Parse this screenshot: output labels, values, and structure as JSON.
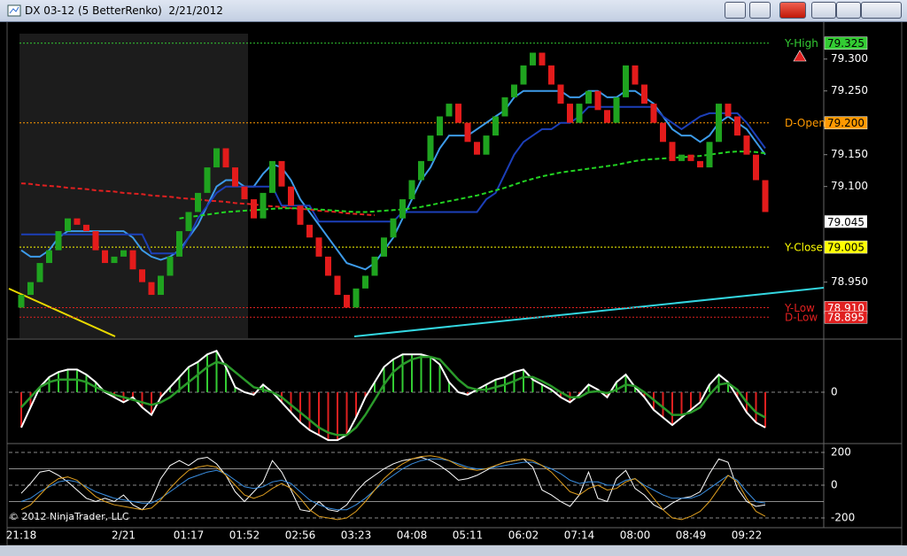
{
  "window": {
    "title": "DX 03-12 (5 BetterRenko)  2/21/2012",
    "copyright": "© 2012 NinjaTrader, LLC"
  },
  "chart_data": [
    {
      "type": "candlestick",
      "open": [
        78.91,
        78.93,
        78.95,
        78.98,
        79.0,
        79.03,
        79.05,
        79.04,
        79.03,
        79.0,
        78.98,
        78.99,
        79.0,
        78.97,
        78.95,
        78.93,
        78.96,
        78.99,
        79.03,
        79.06,
        79.09,
        79.13,
        79.16,
        79.13,
        79.1,
        79.08,
        79.05,
        79.09,
        79.14,
        79.1,
        79.07,
        79.04,
        79.02,
        78.99,
        78.96,
        78.93,
        78.91,
        78.94,
        78.96,
        78.99,
        79.02,
        79.05,
        79.08,
        79.11,
        79.14,
        79.18,
        79.21,
        79.23,
        79.2,
        79.17,
        79.15,
        79.18,
        79.21,
        79.24,
        79.26,
        79.29,
        79.31,
        79.29,
        79.26,
        79.23,
        79.2,
        79.23,
        79.25,
        79.22,
        79.2,
        79.24,
        79.29,
        79.26,
        79.23,
        79.2,
        79.17,
        79.14,
        79.15,
        79.14,
        79.13,
        79.17,
        79.23,
        79.21,
        79.18,
        79.15,
        79.11
      ],
      "close": [
        78.93,
        78.95,
        78.98,
        79.0,
        79.03,
        79.05,
        79.04,
        79.03,
        79.0,
        78.98,
        78.99,
        79.0,
        78.97,
        78.95,
        78.93,
        78.96,
        78.99,
        79.03,
        79.06,
        79.09,
        79.13,
        79.16,
        79.13,
        79.1,
        79.08,
        79.05,
        79.09,
        79.14,
        79.1,
        79.07,
        79.04,
        79.02,
        78.99,
        78.96,
        78.93,
        78.91,
        78.94,
        78.96,
        78.99,
        79.02,
        79.05,
        79.08,
        79.11,
        79.14,
        79.18,
        79.21,
        79.23,
        79.2,
        79.17,
        79.15,
        79.18,
        79.21,
        79.24,
        79.26,
        79.29,
        79.31,
        79.29,
        79.26,
        79.23,
        79.2,
        79.23,
        79.25,
        79.22,
        79.2,
        79.24,
        79.29,
        79.26,
        79.23,
        79.2,
        79.17,
        79.14,
        79.15,
        79.14,
        79.13,
        79.17,
        79.23,
        79.21,
        79.18,
        79.15,
        79.11,
        79.06
      ],
      "up_color": "#1fa31f",
      "down_color": "#e31b1b",
      "ylim": [
        78.862,
        79.351
      ],
      "yticks": [
        {
          "value": 79.3,
          "label": "79.300"
        },
        {
          "value": 79.25,
          "label": "79.250"
        },
        {
          "value": 79.15,
          "label": "79.150"
        },
        {
          "value": 79.1,
          "label": "79.100"
        },
        {
          "value": 78.95,
          "label": "78.950"
        }
      ],
      "lines": [
        {
          "color": "#3d9be9",
          "dashed": false,
          "values": [
            79.0,
            78.99,
            78.99,
            79.0,
            79.02,
            79.03,
            79.03,
            79.03,
            79.03,
            79.03,
            79.03,
            79.03,
            79.02,
            79.0,
            78.99,
            78.985,
            78.99,
            79.0,
            79.02,
            79.04,
            79.07,
            79.1,
            79.11,
            79.11,
            79.1,
            79.1,
            79.12,
            79.135,
            79.13,
            79.11,
            79.08,
            79.06,
            79.04,
            79.02,
            79.0,
            78.98,
            78.975,
            78.97,
            78.98,
            79.0,
            79.02,
            79.05,
            79.08,
            79.11,
            79.13,
            79.16,
            79.18,
            79.18,
            79.18,
            79.19,
            79.2,
            79.21,
            79.22,
            79.24,
            79.25,
            79.25,
            79.25,
            79.25,
            79.25,
            79.24,
            79.24,
            79.25,
            79.25,
            79.24,
            79.24,
            79.25,
            79.25,
            79.24,
            79.23,
            79.21,
            79.19,
            79.18,
            79.18,
            79.17,
            79.18,
            79.2,
            79.21,
            79.2,
            79.19,
            79.17,
            79.15
          ]
        },
        {
          "color": "#1c3fb8",
          "dashed": false,
          "values": [
            79.025,
            79.025,
            79.025,
            79.025,
            79.025,
            79.025,
            79.025,
            79.025,
            79.025,
            79.025,
            79.025,
            79.025,
            79.025,
            79.025,
            78.995,
            78.995,
            78.995,
            78.995,
            79.02,
            79.05,
            79.07,
            79.09,
            79.1,
            79.1,
            79.1,
            79.1,
            79.1,
            79.1,
            79.07,
            79.07,
            79.07,
            79.07,
            79.045,
            79.045,
            79.045,
            79.045,
            79.045,
            79.045,
            79.045,
            79.045,
            79.045,
            79.06,
            79.06,
            79.06,
            79.06,
            79.06,
            79.06,
            79.06,
            79.06,
            79.06,
            79.08,
            79.09,
            79.12,
            79.15,
            79.17,
            79.18,
            79.19,
            79.19,
            79.2,
            79.2,
            79.21,
            79.225,
            79.225,
            79.225,
            79.225,
            79.225,
            79.225,
            79.225,
            79.225,
            79.21,
            79.2,
            79.19,
            79.2,
            79.21,
            79.215,
            79.215,
            79.215,
            79.215,
            79.2,
            79.18,
            79.16
          ]
        },
        {
          "color": "#e02020",
          "dashed": true,
          "values": [
            79.105,
            79.104,
            79.102,
            79.101,
            79.1,
            79.098,
            79.097,
            79.096,
            79.094,
            79.093,
            79.092,
            79.09,
            79.089,
            79.088,
            79.086,
            79.085,
            79.084,
            79.082,
            79.081,
            79.08,
            79.078,
            79.077,
            79.076,
            79.074,
            79.073,
            79.072,
            79.07,
            79.069,
            79.068,
            79.066,
            79.065,
            79.064,
            79.062,
            79.061,
            79.06,
            79.058,
            79.057,
            79.056,
            79.055,
            null,
            null,
            null,
            null,
            null,
            null,
            null,
            null,
            null,
            null,
            null,
            null,
            null,
            null,
            null,
            null,
            null,
            null,
            null,
            null,
            null,
            null,
            null,
            null,
            null,
            null,
            null,
            null,
            null,
            null,
            null,
            null,
            null,
            null,
            null,
            null,
            null,
            null,
            null,
            null,
            null,
            null
          ]
        },
        {
          "color": "#22d322",
          "dashed": true,
          "values": [
            null,
            null,
            null,
            null,
            null,
            null,
            null,
            null,
            null,
            null,
            null,
            null,
            null,
            null,
            null,
            null,
            null,
            79.05,
            79.052,
            79.054,
            79.056,
            79.058,
            79.06,
            79.061,
            79.062,
            79.063,
            79.064,
            79.065,
            79.066,
            79.066,
            79.066,
            79.065,
            79.064,
            79.063,
            79.062,
            79.061,
            79.06,
            79.06,
            79.061,
            79.062,
            79.063,
            79.064,
            79.066,
            79.068,
            79.071,
            79.074,
            79.077,
            79.08,
            79.083,
            79.086,
            79.09,
            79.094,
            79.098,
            79.103,
            79.108,
            79.112,
            79.116,
            79.119,
            79.122,
            79.124,
            79.126,
            79.128,
            79.13,
            79.132,
            79.134,
            79.137,
            79.14,
            79.142,
            79.143,
            79.144,
            79.145,
            79.146,
            79.147,
            79.148,
            79.15,
            79.152,
            79.154,
            79.155,
            79.155,
            79.154,
            79.152
          ]
        }
      ],
      "levels": [
        {
          "name": "Y-High",
          "value": 79.325,
          "color": "#33cc33"
        },
        {
          "name": "D-Open",
          "value": 79.2,
          "label": "79.200",
          "color": "#ff9900"
        },
        {
          "name": "Y-Close",
          "value": 79.005,
          "color": "#ffff00"
        },
        {
          "name": "Y-Low",
          "value": 78.91,
          "label": "78.910",
          "color": "#e02020"
        },
        {
          "name": "D-Low",
          "value": 78.895,
          "color": "#e02020"
        }
      ],
      "last_price": 79.045
    },
    {
      "type": "histogram",
      "values": [
        -0.7,
        -0.3,
        0.1,
        0.3,
        0.4,
        0.45,
        0.45,
        0.35,
        0.2,
        0,
        -0.1,
        -0.2,
        -0.1,
        -0.3,
        -0.45,
        -0.1,
        0.1,
        0.3,
        0.5,
        0.6,
        0.75,
        0.82,
        0.5,
        0.1,
        0,
        -0.05,
        0.15,
        0,
        -0.2,
        -0.4,
        -0.6,
        -0.75,
        -0.85,
        -0.95,
        -0.95,
        -0.85,
        -0.5,
        -0.1,
        0.2,
        0.5,
        0.65,
        0.75,
        0.75,
        0.75,
        0.7,
        0.55,
        0.2,
        0,
        -0.05,
        0.05,
        0.15,
        0.25,
        0.3,
        0.4,
        0.45,
        0.25,
        0.15,
        0.05,
        -0.1,
        -0.2,
        -0.05,
        0.15,
        0.05,
        -0.1,
        0.2,
        0.35,
        0.1,
        -0.1,
        -0.35,
        -0.5,
        -0.65,
        -0.5,
        -0.35,
        -0.2,
        0.15,
        0.35,
        0.2,
        -0.1,
        -0.4,
        -0.6,
        -0.7
      ],
      "signal": [
        -0.3,
        -0.1,
        0.1,
        0.2,
        0.25,
        0.25,
        0.25,
        0.2,
        0.1,
        0.02,
        -0.05,
        -0.1,
        -0.15,
        -0.2,
        -0.25,
        -0.2,
        -0.1,
        0.05,
        0.2,
        0.35,
        0.5,
        0.6,
        0.55,
        0.4,
        0.25,
        0.1,
        0.05,
        0,
        -0.1,
        -0.25,
        -0.4,
        -0.55,
        -0.7,
        -0.8,
        -0.85,
        -0.85,
        -0.7,
        -0.45,
        -0.15,
        0.15,
        0.4,
        0.55,
        0.65,
        0.7,
        0.7,
        0.65,
        0.45,
        0.25,
        0.1,
        0.05,
        0.05,
        0.1,
        0.15,
        0.22,
        0.3,
        0.3,
        0.22,
        0.12,
        0,
        -0.1,
        -0.1,
        0,
        0.02,
        -0.02,
        0.05,
        0.15,
        0.12,
        0,
        -0.15,
        -0.3,
        -0.45,
        -0.45,
        -0.4,
        -0.3,
        -0.05,
        0.15,
        0.18,
        0.05,
        -0.2,
        -0.4,
        -0.5
      ],
      "pos_color": "#33cc33",
      "neg_color": "#e02020",
      "line_color": "#ffffff",
      "signal_color": "#2a9a2a",
      "ylim": [
        -1,
        1
      ],
      "yticks": [
        0
      ]
    },
    {
      "type": "line",
      "categories": [
        "21:18",
        null,
        null,
        null,
        null,
        null,
        null,
        null,
        null,
        null,
        null,
        "2/21",
        null,
        null,
        null,
        null,
        null,
        null,
        "01:17",
        null,
        null,
        null,
        null,
        null,
        "01:52",
        null,
        null,
        null,
        null,
        null,
        "02:56",
        null,
        null,
        null,
        null,
        null,
        "03:23",
        null,
        null,
        null,
        null,
        null,
        "04:08",
        null,
        null,
        null,
        null,
        null,
        "05:11",
        null,
        null,
        null,
        null,
        null,
        "06:02",
        null,
        null,
        null,
        null,
        null,
        "07:14",
        null,
        null,
        null,
        null,
        null,
        "08:00",
        null,
        null,
        null,
        null,
        null,
        "08:49",
        null,
        null,
        null,
        null,
        null,
        "09:22",
        null,
        null
      ],
      "series": [
        {
          "color": "#ffffff",
          "values": [
            -50,
            10,
            80,
            90,
            60,
            20,
            -30,
            -80,
            -100,
            -80,
            -100,
            -60,
            -120,
            -150,
            -90,
            40,
            120,
            150,
            120,
            160,
            170,
            130,
            60,
            -40,
            -100,
            -40,
            20,
            150,
            80,
            -30,
            -150,
            -160,
            -100,
            -150,
            -160,
            -120,
            -40,
            20,
            60,
            100,
            130,
            150,
            160,
            170,
            150,
            120,
            80,
            30,
            40,
            60,
            90,
            120,
            140,
            150,
            160,
            110,
            -30,
            -60,
            -100,
            -130,
            -60,
            80,
            -80,
            -100,
            40,
            90,
            -20,
            -60,
            -120,
            -150,
            -110,
            -80,
            -70,
            -40,
            70,
            160,
            140,
            -20,
            -100,
            -130,
            -120
          ]
        },
        {
          "color": "#3a8ee0",
          "values": [
            -100,
            -80,
            -40,
            -10,
            20,
            30,
            20,
            -10,
            -40,
            -60,
            -80,
            -90,
            -100,
            -110,
            -110,
            -80,
            -40,
            0,
            40,
            60,
            80,
            90,
            70,
            30,
            -10,
            -20,
            -10,
            20,
            30,
            10,
            -40,
            -90,
            -120,
            -140,
            -150,
            -150,
            -120,
            -80,
            -30,
            20,
            60,
            100,
            130,
            150,
            160,
            160,
            150,
            130,
            110,
            100,
            100,
            110,
            120,
            130,
            140,
            140,
            120,
            100,
            70,
            30,
            10,
            20,
            20,
            0,
            0,
            30,
            40,
            0,
            -30,
            -60,
            -80,
            -80,
            -80,
            -60,
            -20,
            20,
            60,
            30,
            -40,
            -100,
            -110
          ]
        },
        {
          "color": "#e0a020",
          "values": [
            -150,
            -120,
            -60,
            0,
            40,
            50,
            30,
            -20,
            -70,
            -100,
            -120,
            -130,
            -140,
            -150,
            -140,
            -90,
            -20,
            40,
            90,
            110,
            120,
            110,
            60,
            0,
            -60,
            -80,
            -60,
            -20,
            10,
            -20,
            -80,
            -150,
            -190,
            -200,
            -210,
            -200,
            -160,
            -100,
            -30,
            40,
            90,
            130,
            160,
            175,
            180,
            170,
            150,
            120,
            100,
            90,
            100,
            120,
            140,
            150,
            160,
            150,
            120,
            80,
            20,
            -40,
            -60,
            -20,
            0,
            -30,
            -20,
            20,
            40,
            -10,
            -80,
            -150,
            -200,
            -210,
            -190,
            -160,
            -100,
            -20,
            60,
            20,
            -80,
            -160,
            -190
          ]
        }
      ],
      "ylim": [
        -254,
        243
      ],
      "yticks": [
        200,
        0,
        -200
      ],
      "hlines": [
        100,
        -100
      ]
    }
  ]
}
